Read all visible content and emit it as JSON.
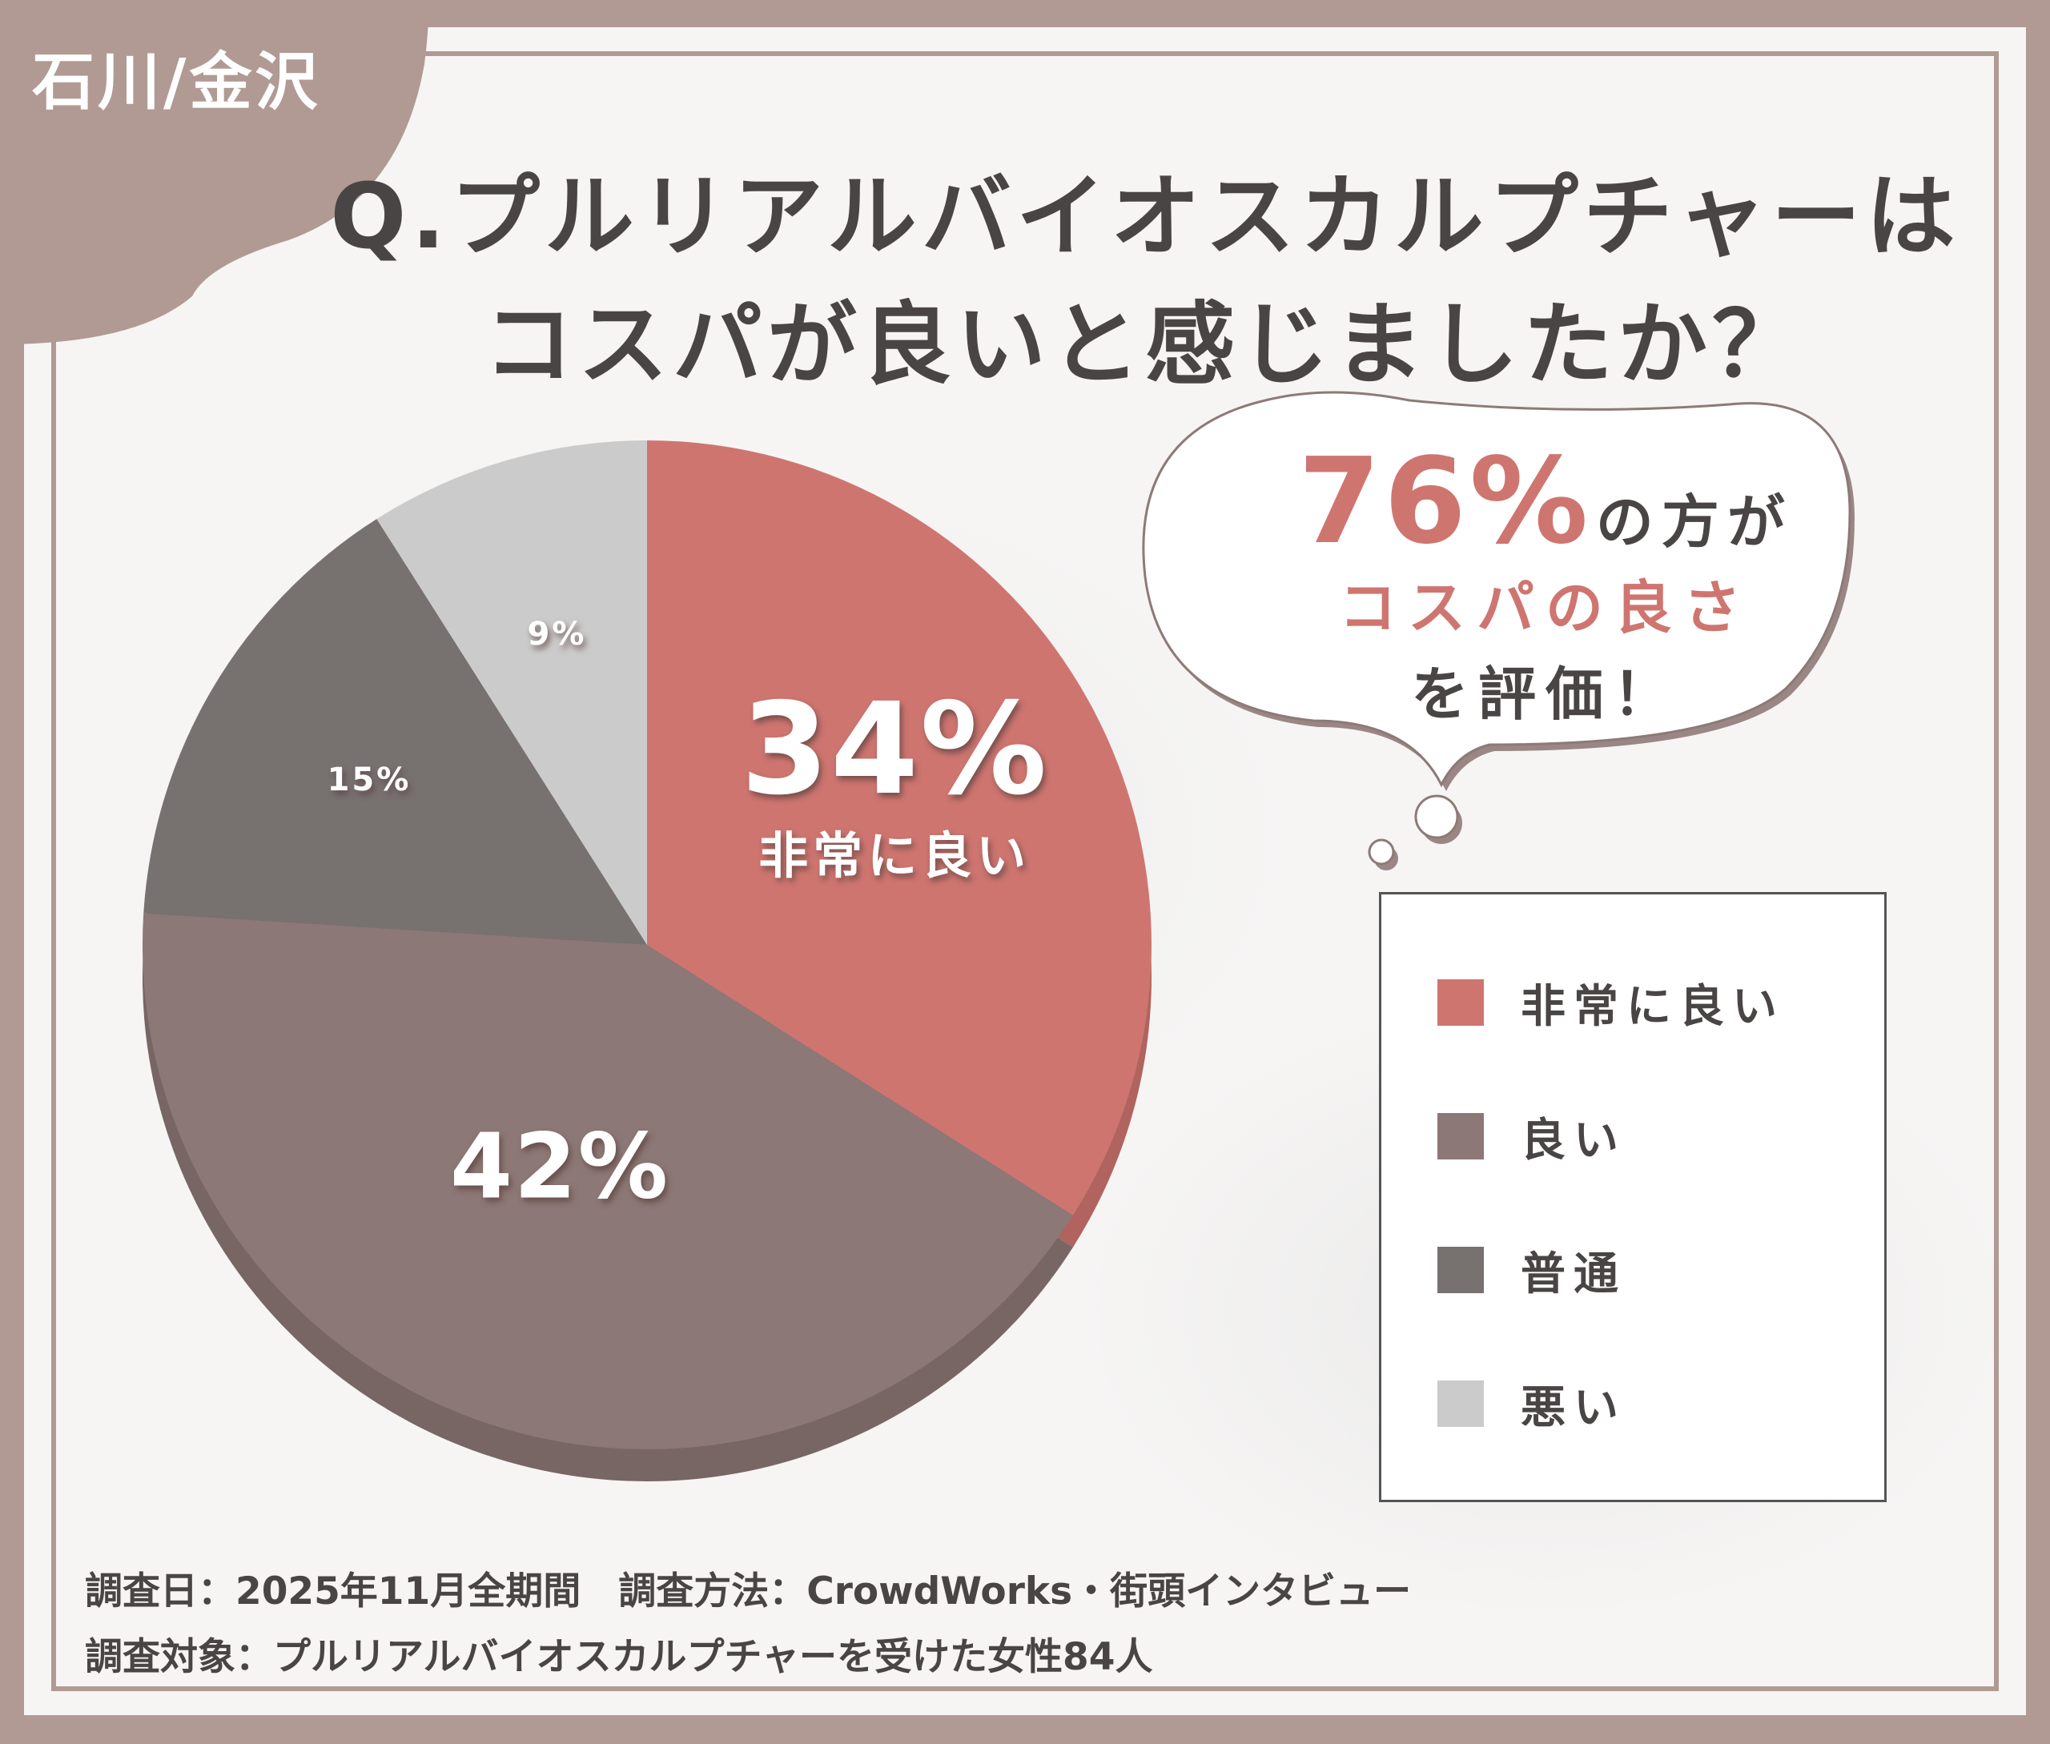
{
  "corner_label": "石川/金沢",
  "title": {
    "line1": "Q.プルリアルバイオスカルプチャーは",
    "line2": "コスパが良いと感じましたか？"
  },
  "callout": {
    "percent": "76%",
    "line1_rest": "の方が",
    "line2": "コスパの良さ",
    "line3": "を評価！"
  },
  "chart_data": {
    "type": "pie",
    "slices": [
      {
        "label": "非常に良い",
        "value": 34,
        "value_label": "34%",
        "color": "#cf7570"
      },
      {
        "label": "良い",
        "value": 42,
        "value_label": "42%",
        "color": "#8c7876"
      },
      {
        "label": "普通",
        "value": 15,
        "value_label": "15%",
        "color": "#777170"
      },
      {
        "label": "悪い",
        "value": 9,
        "value_label": "9%",
        "color": "#cccbcb"
      }
    ],
    "start": "12 o'clock",
    "direction": "clockwise",
    "legend_position": "right"
  },
  "footer": {
    "line1": "調査日：2025年11月全期間　調査方法：CrowdWorks・街頭インタビュー",
    "line2": "調査対象：プルリアルバイオスカルプチャーを受けた女性84人"
  },
  "colors": {
    "background": "#b09a93",
    "panel": "#f6f5f4",
    "accent": "#cf7570",
    "text": "#4a4545"
  }
}
